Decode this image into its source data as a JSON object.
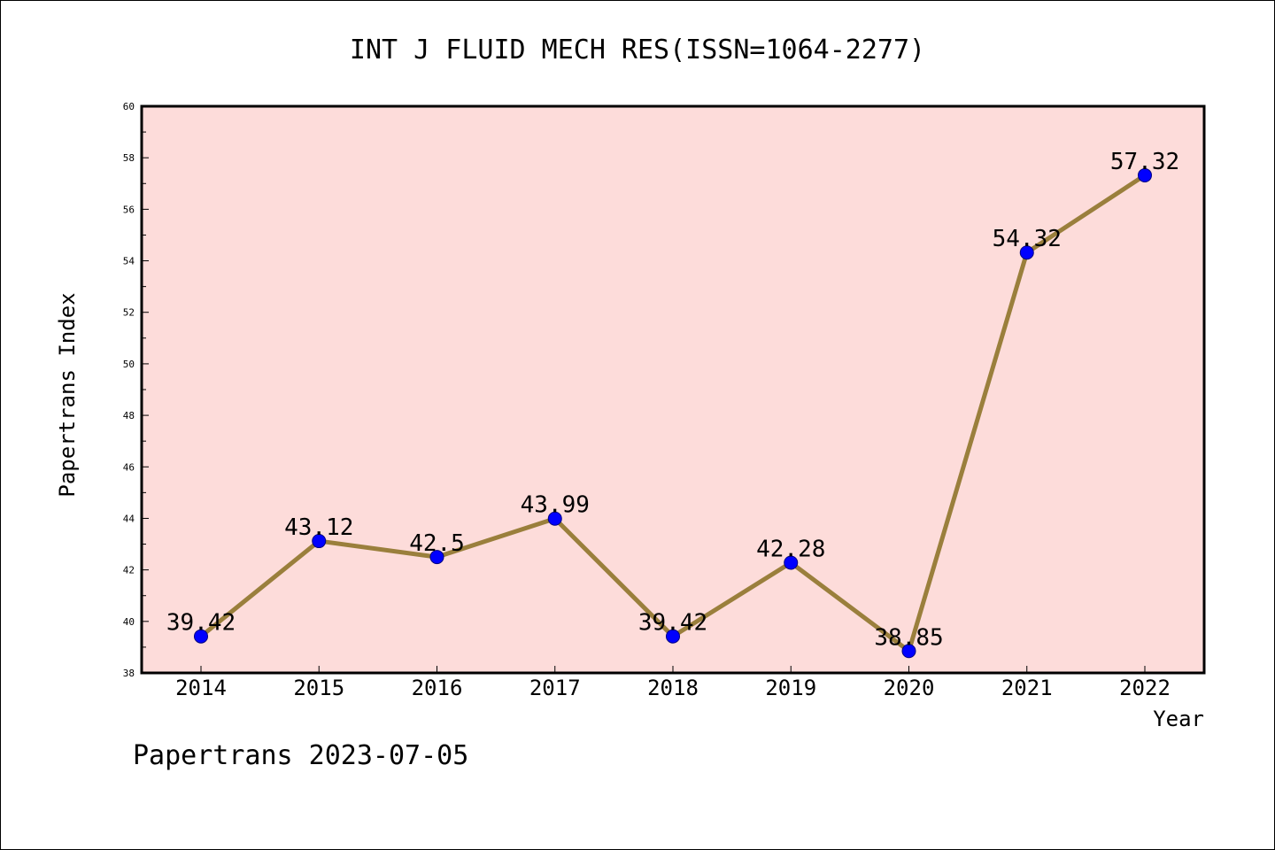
{
  "chart_data": {
    "type": "line",
    "title": "INT J FLUID MECH RES(ISSN=1064-2277)",
    "xlabel": "Year",
    "ylabel": "Papertrans Index",
    "categories": [
      "2014",
      "2015",
      "2016",
      "2017",
      "2018",
      "2019",
      "2020",
      "2021",
      "2022"
    ],
    "series": [
      {
        "values": [
          39.42,
          43.12,
          42.5,
          43.99,
          39.42,
          42.28,
          38.85,
          54.32,
          57.32
        ],
        "labels": [
          "39.42",
          "43.12",
          "42.5",
          "43.99",
          "39.42",
          "42.28",
          "38.85",
          "54.32",
          "57.32"
        ]
      }
    ],
    "ylim": [
      38,
      60
    ],
    "yticks": [
      38,
      40,
      42,
      44,
      46,
      48,
      50,
      52,
      54,
      56,
      58,
      60
    ],
    "grid": false,
    "colors": {
      "plot_background": "#fddcda",
      "line": "#9a7f3c",
      "marker": "#0000ff",
      "marker_edge": "#000080"
    }
  },
  "footer": "Papertrans 2023-07-05"
}
